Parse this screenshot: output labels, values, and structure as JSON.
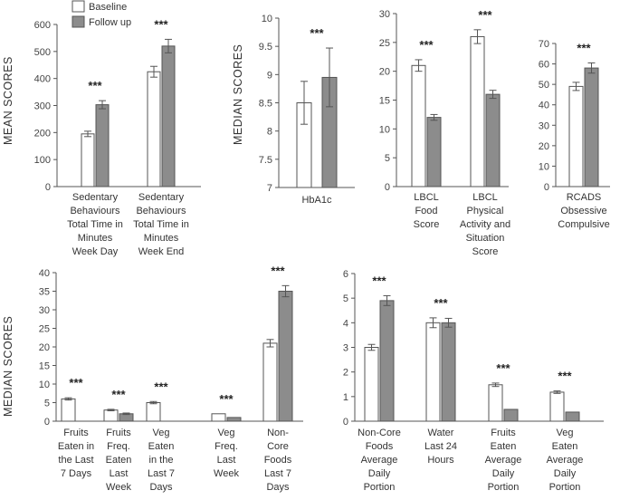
{
  "legend": {
    "baseline": "Baseline",
    "followup": "Follow up",
    "baseline_color": "#ffffff",
    "followup_color": "#8c8c8c"
  },
  "y_labels": {
    "top_left": "MEAN  SCORES",
    "top_right": "MEDIAN  SCORES",
    "bottom": "MEDIAN  SCORES"
  },
  "chart_data": [
    {
      "id": "p1",
      "type": "bar",
      "ylabel": "MEAN  SCORES",
      "ylim": [
        0,
        600
      ],
      "ticks": [
        0,
        100,
        200,
        300,
        400,
        500,
        600
      ],
      "categories": [
        [
          "Sedentary",
          "Behaviours",
          "Total Time in",
          "Minutes",
          "Week Day"
        ],
        [
          "Sedentary",
          "Behaviours",
          "Total Time in",
          "Minutes",
          "Week End"
        ]
      ],
      "series": [
        {
          "name": "Baseline",
          "values": [
            195,
            425
          ],
          "err": [
            10,
            20
          ]
        },
        {
          "name": "Follow up",
          "values": [
            303,
            520
          ],
          "err": [
            15,
            25
          ]
        }
      ],
      "significance": [
        "***",
        "***"
      ]
    },
    {
      "id": "p2",
      "type": "bar",
      "ylabel": "MEDIAN  SCORES",
      "ylim": [
        7,
        10
      ],
      "ticks": [
        7,
        7.5,
        8,
        8.5,
        9,
        9.5,
        10
      ],
      "categories": [
        [
          "HbA1c"
        ]
      ],
      "series": [
        {
          "name": "Baseline",
          "values": [
            8.5
          ],
          "err": [
            0.38
          ]
        },
        {
          "name": "Follow up",
          "values": [
            8.95
          ],
          "err": [
            0.52
          ]
        }
      ],
      "significance": [
        "***"
      ]
    },
    {
      "id": "p3",
      "type": "bar",
      "ylim": [
        0,
        30
      ],
      "ticks": [
        0,
        5,
        10,
        15,
        20,
        25,
        30
      ],
      "categories": [
        [
          "LBCL",
          "Food",
          "Score"
        ],
        [
          "LBCL",
          "Physical",
          "Activity and",
          "Situation",
          "Score"
        ]
      ],
      "series": [
        {
          "name": "Baseline",
          "values": [
            21,
            26
          ],
          "err": [
            1,
            1.2
          ]
        },
        {
          "name": "Follow up",
          "values": [
            12,
            16
          ],
          "err": [
            0.5,
            0.7
          ]
        }
      ],
      "significance": [
        "***",
        "***"
      ]
    },
    {
      "id": "p4",
      "type": "bar",
      "ylim": [
        0,
        70
      ],
      "ticks": [
        0,
        10,
        20,
        30,
        40,
        50,
        60,
        70
      ],
      "categories": [
        [
          "RCADS",
          "Obsessive",
          "Compulsive"
        ]
      ],
      "series": [
        {
          "name": "Baseline",
          "values": [
            49
          ],
          "err": [
            2
          ]
        },
        {
          "name": "Follow up",
          "values": [
            58
          ],
          "err": [
            2.5
          ]
        }
      ],
      "significance": [
        "***"
      ]
    },
    {
      "id": "p5",
      "type": "bar",
      "ylabel": "MEDIAN  SCORES",
      "ylim": [
        0,
        40
      ],
      "ticks": [
        0,
        5,
        10,
        15,
        20,
        25,
        30,
        35,
        40
      ],
      "categories": [
        [
          "Fruits",
          "Eaten in",
          "the Last",
          "7 Days"
        ],
        [
          "Fruits",
          "Freq.",
          "Eaten",
          "Last",
          "Week"
        ],
        [
          "Veg",
          "Eaten",
          "in the",
          "Last 7",
          "Days"
        ],
        [
          "Veg",
          "Freq.",
          "Last",
          "Week"
        ],
        [
          "Non-",
          "Core",
          "Foods",
          "Last 7",
          "Days"
        ]
      ],
      "series": [
        {
          "name": "Baseline",
          "values": [
            6,
            3,
            5,
            2,
            21
          ],
          "err": [
            0.3,
            0.2,
            0.3,
            0,
            1
          ]
        },
        {
          "name": "Follow up",
          "values": [
            null,
            2,
            null,
            1,
            35
          ],
          "err": [
            0,
            0.2,
            0,
            0,
            1.5
          ]
        }
      ],
      "significance": [
        "***",
        "***",
        "***",
        "***",
        "***"
      ]
    },
    {
      "id": "p6",
      "type": "bar",
      "ylim": [
        0,
        6
      ],
      "ticks": [
        0,
        1,
        2,
        3,
        4,
        5,
        6
      ],
      "categories": [
        [
          "Non-Core",
          "Foods",
          "Average",
          "Daily",
          "Portion"
        ],
        [
          "Water",
          "Last 24",
          "Hours"
        ],
        [
          "Fruits",
          "Eaten",
          "Average",
          "Daily",
          "Portion"
        ],
        [
          "Veg",
          "Eaten",
          "Average",
          "Daily",
          "Portion"
        ]
      ],
      "series": [
        {
          "name": "Baseline",
          "values": [
            3,
            4,
            1.48,
            1.18
          ],
          "err": [
            0.12,
            0.2,
            0.07,
            0.05
          ]
        },
        {
          "name": "Follow up",
          "values": [
            4.9,
            4,
            0.48,
            0.37
          ],
          "err": [
            0.2,
            0.18,
            0,
            0
          ]
        }
      ],
      "significance": [
        "***",
        "***",
        "***",
        "***"
      ]
    }
  ]
}
